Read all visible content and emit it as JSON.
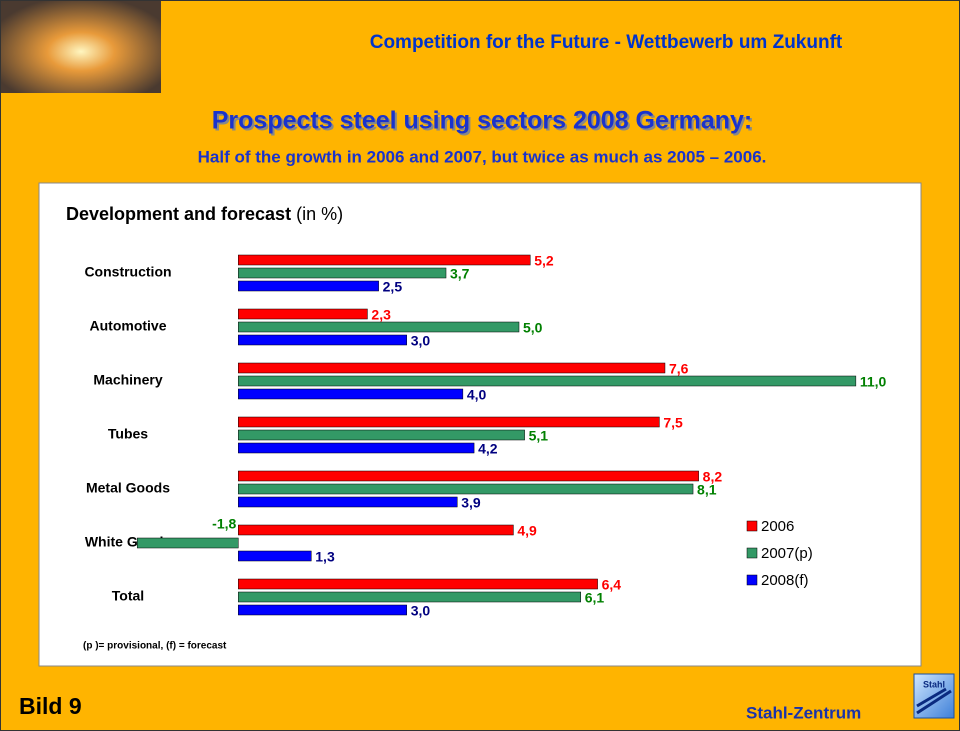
{
  "slide": {
    "header": "Competition for the Future - Wettbewerb um Zukunft",
    "headline": "Prospects steel using sectors 2008 Germany:",
    "subheadline": "Half of the growth in 2006 and 2007, but twice as much as 2005 – 2006.",
    "footnote": "(p )= provisional, (f) = forecast",
    "slide_number": "Bild 9",
    "brand": "Stahl-Zentrum",
    "logo_text": "Stahl"
  },
  "chart_data": {
    "type": "hbar",
    "title": "Development and forecast",
    "title_unit": "(in %)",
    "categories": [
      "Construction",
      "Automotive",
      "Machinery",
      "Tubes",
      "Metal Goods",
      "White Goods",
      "Total"
    ],
    "series": [
      {
        "name": "2006",
        "color": "#ff0000",
        "label_color": "#ff0000",
        "values": [
          5.2,
          2.3,
          7.6,
          7.5,
          8.2,
          4.9,
          6.4
        ],
        "value_labels": [
          "5,2",
          "2,3",
          "7,6",
          "7,5",
          "8,2",
          "4,9",
          "6,4"
        ]
      },
      {
        "name": "2007(p)",
        "color": "#339966",
        "label_color": "#008000",
        "values": [
          3.7,
          5.0,
          11.0,
          5.1,
          8.1,
          -1.8,
          6.1
        ],
        "value_labels": [
          "3,7",
          "5,0",
          "11,0",
          "5,1",
          "8,1",
          "-1,8",
          "6,1"
        ]
      },
      {
        "name": "2008(f)",
        "color": "#0000ff",
        "label_color": "#000080",
        "values": [
          2.5,
          3.0,
          4.0,
          4.2,
          3.9,
          1.3,
          3.0
        ],
        "value_labels": [
          "2,5",
          "3,0",
          "4,0",
          "4,2",
          "3,9",
          "1,3",
          "3,0"
        ]
      }
    ],
    "xlim": [
      -2,
      12
    ],
    "legend": "lower right"
  }
}
